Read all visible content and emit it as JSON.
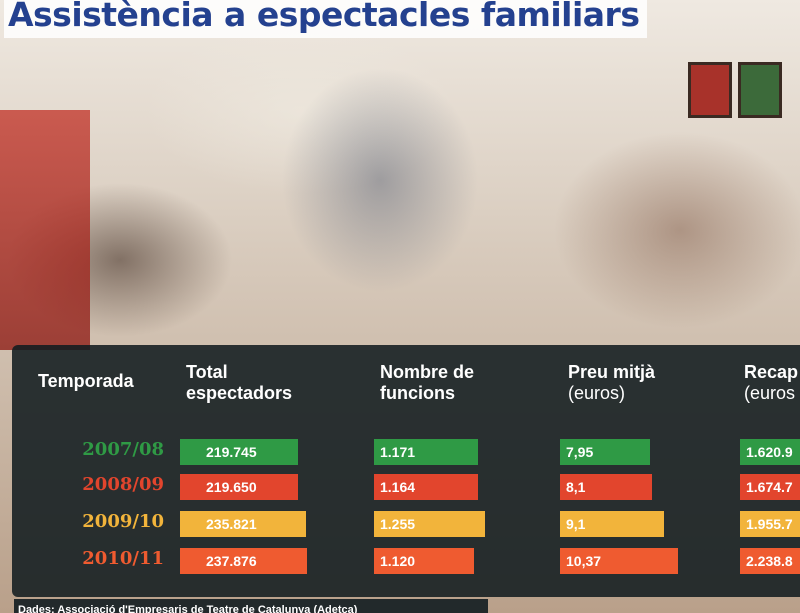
{
  "title": "Assistència a espectacles familiars",
  "headers": {
    "season": "Temporada",
    "spectators": [
      "Total",
      "espectadors"
    ],
    "performances": [
      "Nombre de",
      "funcions"
    ],
    "price": [
      "Preu mitjà",
      "(euros)"
    ],
    "revenue": [
      "Recap",
      "(euros"
    ]
  },
  "colors": {
    "green": "#2f9a45",
    "red": "#e2452d",
    "yellow": "#f2b43b",
    "orange": "#ef5b30",
    "panel": "#121c20",
    "title": "#24418f"
  },
  "chart_data": {
    "type": "table",
    "title": "Assistència a espectacles familiars",
    "columns": [
      "Temporada",
      "Total espectadors",
      "Nombre de funcions",
      "Preu mitjà (euros)",
      "Recap (euros"
    ],
    "rows": [
      {
        "season": "2007/08",
        "spectators": "219.745",
        "performances": "1.171",
        "price": "7,95",
        "revenue": "1.620.9",
        "color": "#2f9a45"
      },
      {
        "season": "2008/09",
        "spectators": "219.650",
        "performances": "1.164",
        "price": "8,1",
        "revenue": "1.674.7",
        "color": "#e2452d"
      },
      {
        "season": "2009/10",
        "spectators": "235.821",
        "performances": "1.255",
        "price": "9,1",
        "revenue": "1.955.7",
        "color": "#f2b43b"
      },
      {
        "season": "2010/11",
        "spectators": "237.876",
        "performances": "1.120",
        "price": "10,37",
        "revenue": "2.238.8",
        "color": "#ef5b30"
      }
    ],
    "values": {
      "spectators": [
        219745,
        219650,
        235821,
        237876
      ],
      "performances": [
        1171,
        1164,
        1255,
        1120
      ],
      "price": [
        7.95,
        8.1,
        9.1,
        10.37
      ]
    }
  },
  "source": "Dades: Associació d'Empresaris de Teatre de Catalunya (Adetca)"
}
